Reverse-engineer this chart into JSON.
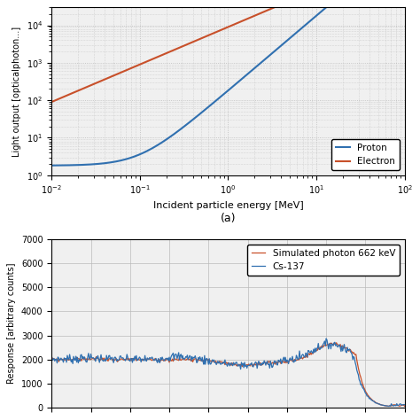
{
  "top_plot": {
    "title": "(a)",
    "xlabel": "Incident particle energy [MeV]",
    "ylabel": "Light output [opticalphoton...]",
    "xlim": [
      0.01,
      100
    ],
    "ylim_bottom": 1.0,
    "ylim_top": 30000,
    "proton_color": "#3070b0",
    "electron_color": "#c8502a",
    "legend_labels": [
      "Proton",
      "Electron"
    ]
  },
  "bottom_plot": {
    "ylabel": "Response [arbitrary counts]",
    "ylim": [
      0,
      7000
    ],
    "yticks": [
      0,
      1000,
      2000,
      3000,
      4000,
      5000,
      6000,
      7000
    ],
    "cs137_color": "#3070b0",
    "sim_color": "#c8502a",
    "legend_labels": [
      "Cs-137",
      "Simulated photon 662 keV"
    ]
  },
  "bg_color": "#f0f0f0",
  "grid_color": "#bbbbbb"
}
